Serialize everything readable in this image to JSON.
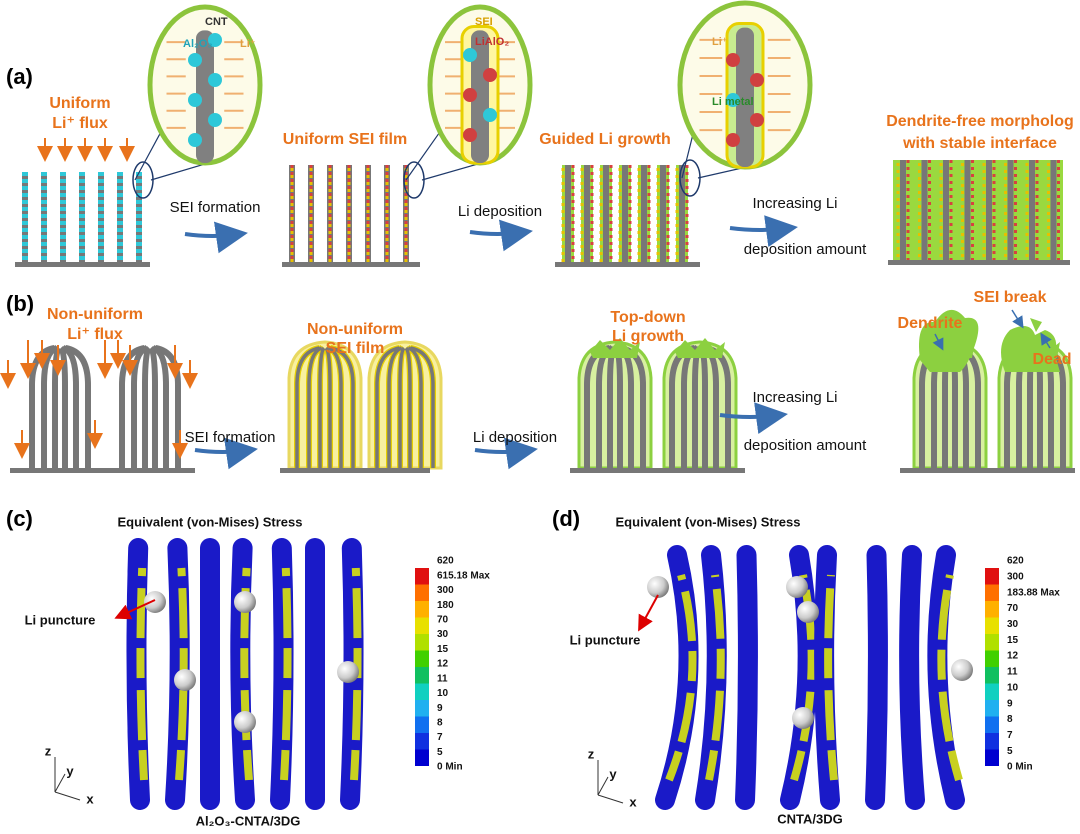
{
  "panel_a": {
    "label": "(a)",
    "flux": [
      "Uniform",
      "Li⁺ flux"
    ],
    "zoom1": [
      "CNT",
      "Al₂O₃",
      "Li⁺"
    ],
    "zoom2": [
      "SEI",
      "LiAlO₂"
    ],
    "zoom3": [
      "Li⁺",
      "Li metal"
    ],
    "step1": "SEI formation",
    "stage2": "Uniform SEI film",
    "step2": "Li deposition",
    "stage3": "Guided Li growth",
    "step3": [
      "Increasing Li",
      "deposition amount"
    ],
    "stage4": [
      "Dendrite-free morpholog",
      "with stable interface"
    ]
  },
  "panel_b": {
    "label": "(b)",
    "flux": [
      "Non-uniform",
      "Li⁺ flux"
    ],
    "step1": "SEI formation",
    "stage2": [
      "Non-uniform",
      "SEI film"
    ],
    "step2": "Li deposition",
    "stage3": [
      "Top-down",
      "Li growth"
    ],
    "step3": [
      "Increasing Li",
      "deposition amount"
    ],
    "dendrite": "Dendrite",
    "sei_break": "SEI break",
    "dead": "Dead"
  },
  "panel_c": {
    "label": "(c)",
    "title": "Equivalent (von-Mises) Stress",
    "puncture": "Li puncture",
    "axes": [
      "z",
      "y",
      "x"
    ],
    "caption": "Al₂O₃-CNTA/3DG",
    "colorbar": [
      "620",
      "615.18 Max",
      "300",
      "180",
      "70",
      "30",
      "15",
      "12",
      "11",
      "10",
      "9",
      "8",
      "7",
      "5",
      "0 Min"
    ]
  },
  "panel_d": {
    "label": "(d)",
    "title": "Equivalent (von-Mises) Stress",
    "puncture": "Li puncture",
    "axes": [
      "z",
      "y",
      "x"
    ],
    "caption": "CNTA/3DG",
    "colorbar": [
      "620",
      "300",
      "183.88 Max",
      "70",
      "30",
      "15",
      "12",
      "11",
      "10",
      "9",
      "8",
      "7",
      "5",
      "0 Min"
    ]
  }
}
